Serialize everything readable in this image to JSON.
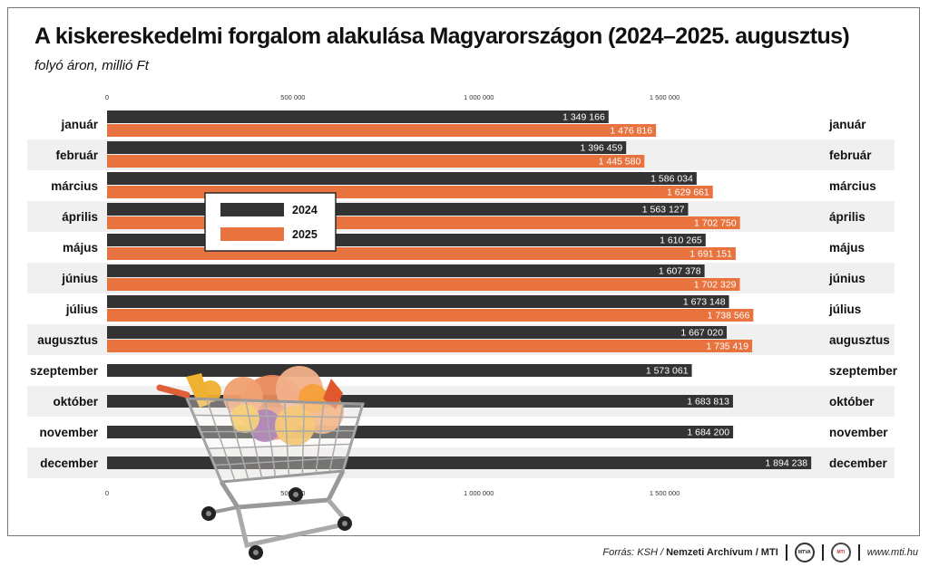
{
  "title": "A kiskereskedelmi forgalom alakulása Magyarországon (2024–2025. augusztus)",
  "subtitle": "folyó áron, millió Ft",
  "colors": {
    "2024": "#333333",
    "2025": "#e8733f",
    "band": "#f0f0f0"
  },
  "chart_data": {
    "type": "bar",
    "orientation": "horizontal",
    "xlim": [
      0,
      1950000
    ],
    "ticks": [
      0,
      500000,
      1000000,
      1500000
    ],
    "tick_labels": [
      "0",
      "500 000",
      "1 000 000",
      "1 500 000"
    ],
    "categories": [
      "január",
      "február",
      "március",
      "április",
      "május",
      "június",
      "július",
      "augusztus",
      "szeptember",
      "október",
      "november",
      "december"
    ],
    "series": [
      {
        "name": "2024",
        "values": [
          1349166,
          1396459,
          1586034,
          1563127,
          1610265,
          1607378,
          1673148,
          1667020,
          1573061,
          1683813,
          1684200,
          1894238
        ],
        "labels": [
          "1 349 166",
          "1 396 459",
          "1 586 034",
          "1 563 127",
          "1 610 265",
          "1 607 378",
          "1 673 148",
          "1 667 020",
          "1 573 061",
          "1 683 813",
          "1 684 200",
          "1 894 238"
        ]
      },
      {
        "name": "2025",
        "values": [
          1476816,
          1445580,
          1629661,
          1702750,
          1691151,
          1702329,
          1738566,
          1735419,
          null,
          null,
          null,
          null
        ],
        "labels": [
          "1 476 816",
          "1 445 580",
          "1 629 661",
          "1 702 750",
          "1 691 151",
          "1 702 329",
          "1 738 566",
          "1 735 419",
          null,
          null,
          null,
          null
        ]
      }
    ],
    "legend": {
      "placement": "center-left",
      "entries": [
        "2024",
        "2025"
      ]
    },
    "grid": false
  },
  "footer": {
    "source_prefix": "Forrás: KSH / ",
    "source_bold": "Nemzeti Archívum / MTI",
    "logo1": "MTVA",
    "logo2": "MTI",
    "url": "www.mti.hu"
  },
  "illustration": "shopping-cart-with-produce"
}
